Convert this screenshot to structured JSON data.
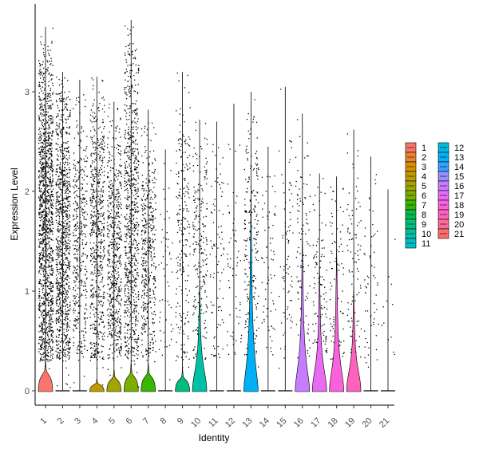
{
  "chart_data": {
    "type": "violin",
    "xlabel": "Identity",
    "ylabel": "Expression Level",
    "ylim": [
      -0.15,
      3.9
    ],
    "yticks": [
      0,
      1,
      2,
      3
    ],
    "grid": false,
    "legend_position": "right",
    "categories": [
      "1",
      "2",
      "3",
      "4",
      "5",
      "6",
      "7",
      "8",
      "9",
      "10",
      "11",
      "12",
      "13",
      "14",
      "15",
      "16",
      "17",
      "18",
      "19",
      "20",
      "21"
    ],
    "colors": [
      "#F8766D",
      "#EA8331",
      "#D89000",
      "#C09B00",
      "#A3A500",
      "#7CAE00",
      "#39B600",
      "#00BB4E",
      "#00BF7D",
      "#00C1A3",
      "#00BFC4",
      "#00BAE0",
      "#00B0F6",
      "#35A2FF",
      "#9590FF",
      "#C77CFF",
      "#E76BF3",
      "#FA62DB",
      "#FF62BC",
      "#FF6A98",
      "#FF6C6B"
    ],
    "max_values": [
      3.65,
      3.2,
      3.12,
      3.15,
      2.9,
      3.72,
      2.82,
      2.42,
      3.2,
      2.72,
      2.7,
      2.88,
      3.0,
      2.45,
      3.05,
      2.78,
      2.18,
      2.15,
      2.62,
      2.35,
      2.02
    ],
    "dot_density": [
      1400,
      1000,
      420,
      650,
      600,
      800,
      450,
      55,
      220,
      240,
      90,
      60,
      230,
      70,
      80,
      110,
      120,
      80,
      90,
      60,
      12
    ],
    "violin_heights": [
      0.32,
      0.02,
      0.02,
      0.12,
      0.22,
      0.28,
      0.28,
      0.02,
      0.22,
      1.1,
      0.02,
      0.02,
      1.95,
      0.02,
      0.02,
      1.55,
      1.25,
      1.4,
      1.05,
      0.02,
      0.02
    ],
    "legend": [
      "1",
      "2",
      "3",
      "4",
      "5",
      "6",
      "7",
      "8",
      "9",
      "10",
      "11",
      "12",
      "13",
      "14",
      "15",
      "16",
      "17",
      "18",
      "19",
      "20",
      "21"
    ]
  }
}
